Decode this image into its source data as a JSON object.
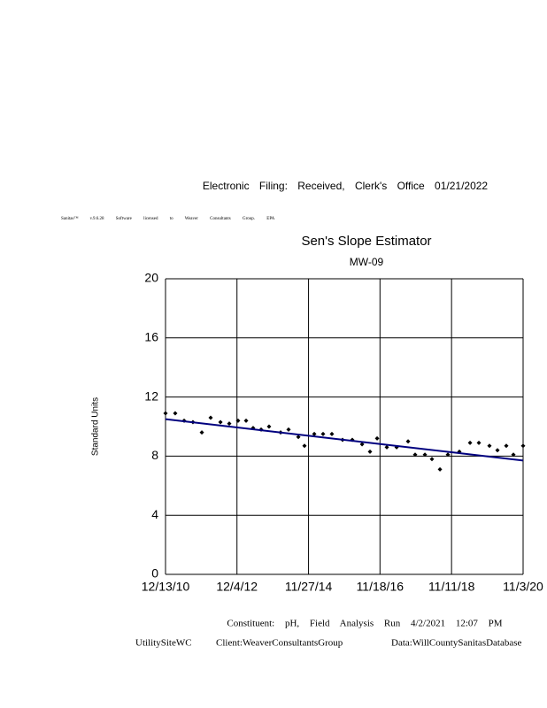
{
  "header": {
    "filing": "Electronic Filing: Received, Clerk's Office 01/21/2022",
    "license": "Sanitas™ v.9.6.28 Software licensed to Weaver Consultants Group. EPA"
  },
  "chart_data": {
    "type": "scatter",
    "title": "Sen's Slope Estimator",
    "subtitle": "MW-09",
    "y_label": "Standard Units",
    "xlim": [
      "2010-12-13",
      "2020-11-03"
    ],
    "xticks": [
      {
        "value": "2010-12-13",
        "label": "12/13/10"
      },
      {
        "value": "2012-12-04",
        "label": "12/4/12"
      },
      {
        "value": "2014-11-27",
        "label": "11/27/14"
      },
      {
        "value": "2016-11-18",
        "label": "11/18/16"
      },
      {
        "value": "2018-11-11",
        "label": "11/11/18"
      },
      {
        "value": "2020-11-03",
        "label": "11/3/20"
      }
    ],
    "ylim": [
      0,
      20
    ],
    "yticks": [
      0,
      4,
      8,
      12,
      16,
      20
    ],
    "grid": true,
    "series": [
      {
        "color": "#000000",
        "x": [
          "2010-12-13",
          "2011-03-21",
          "2011-06-19",
          "2011-09-16",
          "2011-12-15",
          "2012-03-13",
          "2012-06-20",
          "2012-09-17",
          "2012-12-15",
          "2013-03-06",
          "2013-05-16",
          "2013-08-05",
          "2013-10-24",
          "2014-02-18",
          "2014-05-09",
          "2014-08-16",
          "2014-10-17",
          "2015-01-24",
          "2015-04-23",
          "2015-07-21",
          "2015-11-06",
          "2016-02-12",
          "2016-05-21",
          "2016-08-09",
          "2016-10-20",
          "2017-01-26",
          "2017-05-05",
          "2017-08-29",
          "2017-11-08",
          "2018-02-15",
          "2018-04-27",
          "2018-07-17",
          "2018-10-05",
          "2019-01-29",
          "2019-05-17",
          "2019-08-14",
          "2019-11-29",
          "2020-02-18",
          "2020-05-17",
          "2020-07-28",
          "2020-11-03"
        ],
        "values": [
          10.9,
          10.9,
          10.4,
          10.3,
          9.6,
          10.6,
          10.3,
          10.2,
          10.4,
          10.4,
          9.9,
          9.8,
          10.0,
          9.6,
          9.8,
          9.3,
          8.7,
          9.5,
          9.5,
          9.5,
          9.1,
          9.1,
          8.8,
          8.3,
          9.2,
          8.6,
          8.6,
          9.0,
          8.1,
          8.1,
          7.8,
          7.1,
          8.1,
          8.3,
          8.9,
          8.9,
          8.7,
          8.4,
          8.7,
          8.1,
          8.7
        ]
      }
    ],
    "trend": {
      "color": "#00007f",
      "x": [
        "2010-12-13",
        "2020-11-03"
      ],
      "values": [
        10.5,
        7.7
      ]
    }
  },
  "footer": {
    "constituent": "Constituent: pH, Field Analysis Run 4/2/2021 12:07 PM",
    "site": "UtilitySiteWC",
    "client": "Client:WeaverConsultantsGroup",
    "data": "Data:WillCountySanitasDatabase"
  }
}
